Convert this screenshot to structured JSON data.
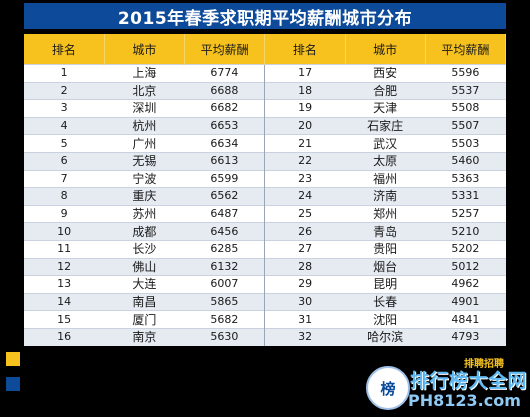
{
  "title": "2015年春季求职期平均薪酬城市分布",
  "headers": [
    "排名",
    "城市",
    "平均薪酬",
    "排名",
    "城市",
    "平均薪酬"
  ],
  "rows": [
    [
      "1",
      "上海",
      "6774",
      "17",
      "西安",
      "5596"
    ],
    [
      "2",
      "北京",
      "6688",
      "18",
      "合肥",
      "5537"
    ],
    [
      "3",
      "深圳",
      "6682",
      "19",
      "天津",
      "5508"
    ],
    [
      "4",
      "杭州",
      "6653",
      "20",
      "石家庄",
      "5507"
    ],
    [
      "5",
      "广州",
      "6634",
      "21",
      "武汉",
      "5503"
    ],
    [
      "6",
      "无锡",
      "6613",
      "22",
      "太原",
      "5460"
    ],
    [
      "7",
      "宁波",
      "6599",
      "23",
      "福州",
      "5363"
    ],
    [
      "8",
      "重庆",
      "6562",
      "24",
      "济南",
      "5331"
    ],
    [
      "9",
      "苏州",
      "6487",
      "25",
      "郑州",
      "5257"
    ],
    [
      "10",
      "成都",
      "6456",
      "26",
      "青岛",
      "5210"
    ],
    [
      "11",
      "长沙",
      "6285",
      "27",
      "贵阳",
      "5202"
    ],
    [
      "12",
      "佛山",
      "6132",
      "28",
      "烟台",
      "5012"
    ],
    [
      "13",
      "大连",
      "6007",
      "29",
      "昆明",
      "4962"
    ],
    [
      "14",
      "南昌",
      "5865",
      "30",
      "长春",
      "4901"
    ],
    [
      "15",
      "厦门",
      "5682",
      "31",
      "沈阳",
      "4841"
    ],
    [
      "16",
      "南京",
      "5630",
      "32",
      "哈尔滨",
      "4793"
    ]
  ],
  "watermark": {
    "circle_text": "榜",
    "small_text": "排聘招聘",
    "main_text": "排行榜大全网",
    "domain": "PH8123.com"
  },
  "colors": {
    "title_bg": "#0d4a99",
    "header_bg": "#f7c21e",
    "row_alt": "#e6ebf2"
  }
}
